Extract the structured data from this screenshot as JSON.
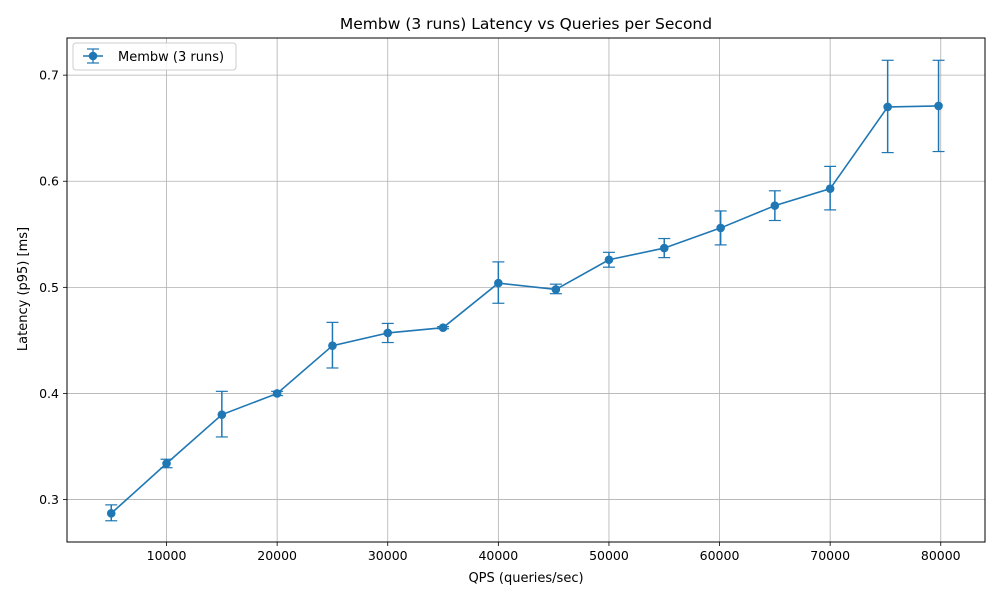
{
  "chart_data": {
    "type": "line",
    "title": "Membw (3 runs) Latency vs Queries per Second",
    "xlabel": "QPS (queries/sec)",
    "ylabel": "Latency (p95) [ms]",
    "xlim": [
      1000,
      84000
    ],
    "ylim": [
      0.26,
      0.735
    ],
    "xticks": [
      10000,
      20000,
      30000,
      40000,
      50000,
      60000,
      70000,
      80000
    ],
    "xtick_labels": [
      "10000",
      "20000",
      "30000",
      "40000",
      "50000",
      "60000",
      "70000",
      "80000"
    ],
    "yticks": [
      0.3,
      0.4,
      0.5,
      0.6,
      0.7
    ],
    "ytick_labels": [
      "0.3",
      "0.4",
      "0.5",
      "0.6",
      "0.7"
    ],
    "grid": true,
    "legend_position": "upper-left",
    "color": "#1f77b4",
    "series": [
      {
        "name": "Membw (3 runs)",
        "marker": "circle",
        "error_bars": true,
        "x": [
          5000,
          10000,
          15000,
          20000,
          25000,
          30000,
          35000,
          40000,
          45200,
          50000,
          55000,
          60100,
          65000,
          70000,
          75200,
          79800
        ],
        "y": [
          0.287,
          0.334,
          0.38,
          0.4,
          0.445,
          0.457,
          0.462,
          0.504,
          0.498,
          0.526,
          0.537,
          0.556,
          0.577,
          0.593,
          0.67,
          0.671
        ],
        "yerr_low": [
          0.28,
          0.33,
          0.359,
          0.398,
          0.424,
          0.448,
          0.461,
          0.485,
          0.494,
          0.519,
          0.528,
          0.54,
          0.563,
          0.573,
          0.627,
          0.628
        ],
        "yerr_high": [
          0.295,
          0.338,
          0.402,
          0.402,
          0.467,
          0.466,
          0.463,
          0.524,
          0.503,
          0.533,
          0.546,
          0.572,
          0.591,
          0.614,
          0.714,
          0.714
        ]
      }
    ]
  }
}
